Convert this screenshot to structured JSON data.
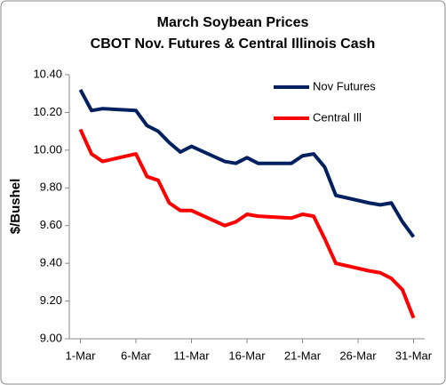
{
  "chart_data": {
    "type": "line",
    "title": "March Soybean Prices",
    "subtitle": "CBOT Nov. Futures & Central Illinois Cash",
    "y_label": "$/Bushel",
    "x": [
      1,
      2,
      3,
      6,
      7,
      8,
      9,
      10,
      11,
      14,
      15,
      16,
      17,
      20,
      21,
      22,
      23,
      24,
      27,
      28,
      29,
      30,
      31
    ],
    "series": [
      {
        "name": "Nov Futures",
        "color": "#002060",
        "values": [
          10.32,
          10.21,
          10.22,
          10.21,
          10.13,
          10.1,
          10.04,
          9.99,
          10.02,
          9.94,
          9.93,
          9.96,
          9.93,
          9.93,
          9.97,
          9.98,
          9.91,
          9.76,
          9.72,
          9.71,
          9.72,
          9.62,
          9.54
        ]
      },
      {
        "name": "Central Ill",
        "color": "#ff0000",
        "values": [
          10.11,
          9.98,
          9.94,
          9.98,
          9.86,
          9.84,
          9.72,
          9.68,
          9.68,
          9.6,
          9.62,
          9.66,
          9.65,
          9.64,
          9.66,
          9.65,
          9.53,
          9.4,
          9.36,
          9.35,
          9.32,
          9.26,
          9.11
        ]
      }
    ],
    "xlim": [
      0,
      32
    ],
    "xticks": [
      {
        "value": 1,
        "label": "1-Mar"
      },
      {
        "value": 6,
        "label": "6-Mar"
      },
      {
        "value": 11,
        "label": "11-Mar"
      },
      {
        "value": 16,
        "label": "16-Mar"
      },
      {
        "value": 21,
        "label": "21-Mar"
      },
      {
        "value": 26,
        "label": "26-Mar"
      },
      {
        "value": 31,
        "label": "31-Mar"
      }
    ],
    "ylim": [
      9.0,
      10.4
    ],
    "yticks": [
      {
        "value": 9.0,
        "label": "9.00"
      },
      {
        "value": 9.2,
        "label": "9.20"
      },
      {
        "value": 9.4,
        "label": "9.40"
      },
      {
        "value": 9.6,
        "label": "9.60"
      },
      {
        "value": 9.8,
        "label": "9.80"
      },
      {
        "value": 10.0,
        "label": "10.00"
      },
      {
        "value": 10.2,
        "label": "10.20"
      },
      {
        "value": 10.4,
        "label": "10.40"
      }
    ],
    "grid": false,
    "legend": "top-right"
  }
}
